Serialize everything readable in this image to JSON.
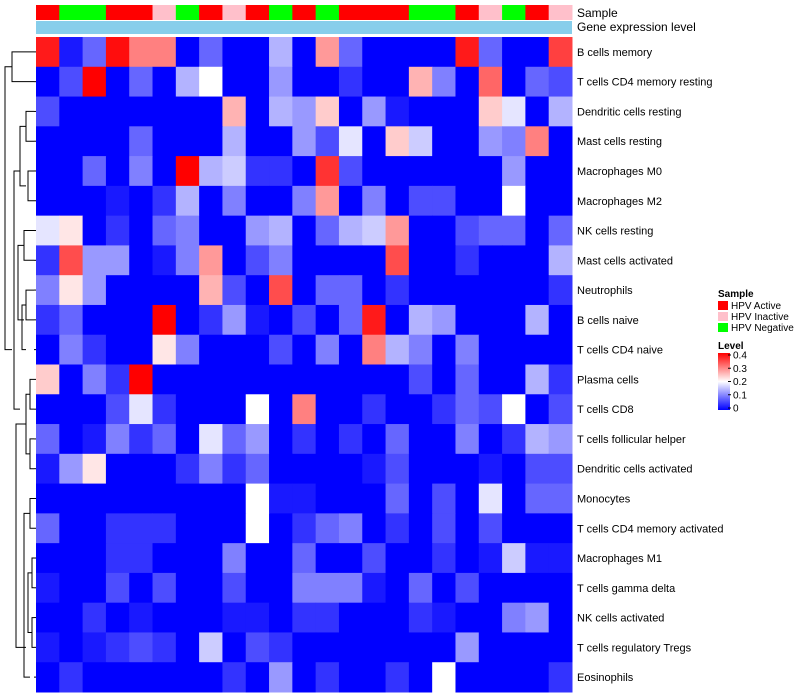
{
  "chart_data": {
    "type": "heatmap",
    "title": "",
    "annotation_tracks": {
      "sample_label": "Sample",
      "gene_label": "Gene expression level",
      "samples": [
        "HPV Active",
        "HPV Negative",
        "HPV Negative",
        "HPV Active",
        "HPV Active",
        "HPV Inactive",
        "HPV Negative",
        "HPV Active",
        "HPV Inactive",
        "HPV Active",
        "HPV Negative",
        "HPV Active",
        "HPV Negative",
        "HPV Active",
        "HPV Active",
        "HPV Active",
        "HPV Negative",
        "HPV Negative",
        "HPV Active",
        "HPV Inactive",
        "HPV Negative",
        "HPV Active",
        "HPV Inactive"
      ]
    },
    "rows": [
      "B cells memory",
      "T cells CD4 memory resting",
      "Dendritic cells resting",
      "Mast cells resting",
      "Macrophages M0",
      "Macrophages M2",
      "NK cells resting",
      "Mast cells activated",
      "Neutrophils",
      "B cells naive",
      "T cells CD4 naive",
      "Plasma cells",
      "T cells CD8",
      "T cells follicular helper",
      "Dendritic cells activated",
      "Monocytes",
      "T cells CD4 memory activated",
      "Macrophages M1",
      "T cells gamma delta",
      "NK cells activated",
      "T cells regulatory  Tregs",
      "Eosinophils"
    ],
    "values": [
      [
        0.38,
        0.02,
        0.08,
        0.39,
        0.3,
        0.3,
        0.0,
        0.08,
        0.0,
        0.0,
        0.14,
        0.0,
        0.28,
        0.08,
        0.0,
        0.0,
        0.0,
        0.0,
        0.38,
        0.08,
        0.0,
        0.0,
        0.35
      ],
      [
        0.0,
        0.06,
        0.4,
        0.0,
        0.08,
        0.0,
        0.14,
        0.2,
        0.0,
        0.0,
        0.12,
        0.0,
        0.0,
        0.04,
        0.0,
        0.0,
        0.26,
        0.1,
        0.0,
        0.32,
        0.0,
        0.08,
        0.06
      ],
      [
        0.06,
        0.0,
        0.0,
        0.0,
        0.0,
        0.0,
        0.0,
        0.0,
        0.26,
        0.0,
        0.14,
        0.12,
        0.24,
        0.0,
        0.12,
        0.02,
        0.0,
        0.0,
        0.0,
        0.24,
        0.18,
        0.0,
        0.14
      ],
      [
        0.0,
        0.0,
        0.0,
        0.0,
        0.08,
        0.0,
        0.0,
        0.0,
        0.14,
        0.0,
        0.0,
        0.12,
        0.06,
        0.18,
        0.0,
        0.24,
        0.16,
        0.0,
        0.0,
        0.12,
        0.1,
        0.3,
        0.0
      ],
      [
        0.0,
        0.0,
        0.08,
        0.0,
        0.1,
        0.0,
        0.4,
        0.14,
        0.16,
        0.04,
        0.04,
        0.0,
        0.36,
        0.06,
        0.0,
        0.0,
        0.0,
        0.0,
        0.0,
        0.0,
        0.12,
        0.0,
        0.0
      ],
      [
        0.0,
        0.0,
        0.0,
        0.02,
        0.0,
        0.04,
        0.14,
        0.0,
        0.1,
        0.0,
        0.0,
        0.1,
        0.28,
        0.0,
        0.1,
        0.0,
        0.06,
        0.06,
        0.0,
        0.0,
        0.2,
        0.0,
        0.0
      ],
      [
        0.18,
        0.22,
        0.0,
        0.04,
        0.0,
        0.08,
        0.1,
        0.0,
        0.0,
        0.12,
        0.14,
        0.0,
        0.08,
        0.14,
        0.16,
        0.28,
        0.0,
        0.0,
        0.06,
        0.08,
        0.08,
        0.0,
        0.08
      ],
      [
        0.04,
        0.34,
        0.12,
        0.12,
        0.0,
        0.02,
        0.1,
        0.28,
        0.0,
        0.06,
        0.1,
        0.0,
        0.0,
        0.0,
        0.0,
        0.34,
        0.0,
        0.0,
        0.04,
        0.0,
        0.0,
        0.0,
        0.14
      ],
      [
        0.1,
        0.22,
        0.12,
        0.0,
        0.0,
        0.0,
        0.0,
        0.26,
        0.06,
        0.0,
        0.34,
        0.0,
        0.08,
        0.08,
        0.0,
        0.04,
        0.0,
        0.0,
        0.0,
        0.0,
        0.0,
        0.0,
        0.04
      ],
      [
        0.04,
        0.08,
        0.0,
        0.0,
        0.0,
        0.4,
        0.0,
        0.04,
        0.12,
        0.02,
        0.0,
        0.06,
        0.0,
        0.08,
        0.38,
        0.0,
        0.14,
        0.12,
        0.0,
        0.0,
        0.0,
        0.14,
        0.0
      ],
      [
        0.0,
        0.1,
        0.04,
        0.0,
        0.0,
        0.22,
        0.1,
        0.0,
        0.0,
        0.0,
        0.06,
        0.0,
        0.1,
        0.0,
        0.3,
        0.14,
        0.1,
        0.0,
        0.1,
        0.0,
        0.0,
        0.0,
        0.0
      ],
      [
        0.24,
        0.0,
        0.1,
        0.04,
        0.4,
        0.0,
        0.0,
        0.0,
        0.0,
        0.0,
        0.0,
        0.0,
        0.0,
        0.0,
        0.0,
        0.0,
        0.06,
        0.0,
        0.08,
        0.0,
        0.0,
        0.14,
        0.04
      ],
      [
        0.0,
        0.0,
        0.0,
        0.06,
        0.18,
        0.04,
        0.0,
        0.0,
        0.0,
        0.2,
        0.0,
        0.3,
        0.0,
        0.0,
        0.04,
        0.0,
        0.0,
        0.04,
        0.08,
        0.06,
        0.2,
        0.0,
        0.06
      ],
      [
        0.08,
        0.0,
        0.02,
        0.1,
        0.04,
        0.08,
        0.0,
        0.18,
        0.08,
        0.12,
        0.0,
        0.04,
        0.0,
        0.04,
        0.0,
        0.08,
        0.0,
        0.0,
        0.1,
        0.0,
        0.04,
        0.14,
        0.12
      ],
      [
        0.02,
        0.12,
        0.22,
        0.0,
        0.0,
        0.0,
        0.04,
        0.1,
        0.04,
        0.08,
        0.0,
        0.0,
        0.0,
        0.0,
        0.02,
        0.06,
        0.0,
        0.0,
        0.0,
        0.02,
        0.0,
        0.06,
        0.06
      ],
      [
        0.0,
        0.0,
        0.0,
        0.0,
        0.0,
        0.0,
        0.0,
        0.0,
        0.0,
        0.2,
        0.02,
        0.02,
        0.0,
        0.0,
        0.0,
        0.08,
        0.0,
        0.06,
        0.0,
        0.18,
        0.0,
        0.08,
        0.08
      ],
      [
        0.08,
        0.0,
        0.0,
        0.04,
        0.04,
        0.04,
        0.0,
        0.0,
        0.0,
        0.2,
        0.0,
        0.04,
        0.08,
        0.1,
        0.0,
        0.04,
        0.0,
        0.06,
        0.0,
        0.06,
        0.0,
        0.0,
        0.0
      ],
      [
        0.0,
        0.0,
        0.0,
        0.04,
        0.04,
        0.0,
        0.0,
        0.0,
        0.1,
        0.0,
        0.0,
        0.08,
        0.0,
        0.0,
        0.06,
        0.0,
        0.0,
        0.04,
        0.0,
        0.02,
        0.16,
        0.02,
        0.02
      ],
      [
        0.02,
        0.0,
        0.0,
        0.06,
        0.0,
        0.06,
        0.0,
        0.0,
        0.06,
        0.0,
        0.0,
        0.1,
        0.1,
        0.1,
        0.02,
        0.0,
        0.08,
        0.0,
        0.06,
        0.0,
        0.0,
        0.0,
        0.0
      ],
      [
        0.0,
        0.0,
        0.04,
        0.0,
        0.02,
        0.0,
        0.0,
        0.0,
        0.02,
        0.02,
        0.0,
        0.04,
        0.04,
        0.0,
        0.0,
        0.0,
        0.04,
        0.02,
        0.0,
        0.0,
        0.1,
        0.12,
        0.0
      ],
      [
        0.02,
        0.0,
        0.02,
        0.04,
        0.06,
        0.04,
        0.0,
        0.16,
        0.0,
        0.06,
        0.04,
        0.0,
        0.0,
        0.0,
        0.0,
        0.0,
        0.0,
        0.0,
        0.12,
        0.0,
        0.0,
        0.0,
        0.0
      ],
      [
        0.0,
        0.04,
        0.0,
        0.0,
        0.0,
        0.0,
        0.0,
        0.0,
        0.04,
        0.0,
        0.12,
        0.0,
        0.04,
        0.0,
        0.0,
        0.04,
        0.0,
        0.2,
        0.0,
        0.0,
        0.0,
        0.0,
        0.04
      ]
    ],
    "value_range": [
      0,
      0.4
    ],
    "legend": {
      "sample_title": "Sample",
      "sample_entries": [
        {
          "label": "HPV Active",
          "color": "#ff0000"
        },
        {
          "label": "HPV Inactive",
          "color": "#ffc0cb"
        },
        {
          "label": "HPV Negative",
          "color": "#00ff00"
        }
      ],
      "level_title": "Level",
      "level_ticks": [
        "0.4",
        "0.3",
        "0.2",
        "0.1",
        "0"
      ],
      "level_tick_values": [
        0.4,
        0.3,
        0.2,
        0.1,
        0
      ],
      "placement": "right"
    },
    "colors": {
      "low": "#0000ff",
      "mid": "#ffffff",
      "high": "#ff0000",
      "gene_track": "#87ceeb"
    }
  }
}
